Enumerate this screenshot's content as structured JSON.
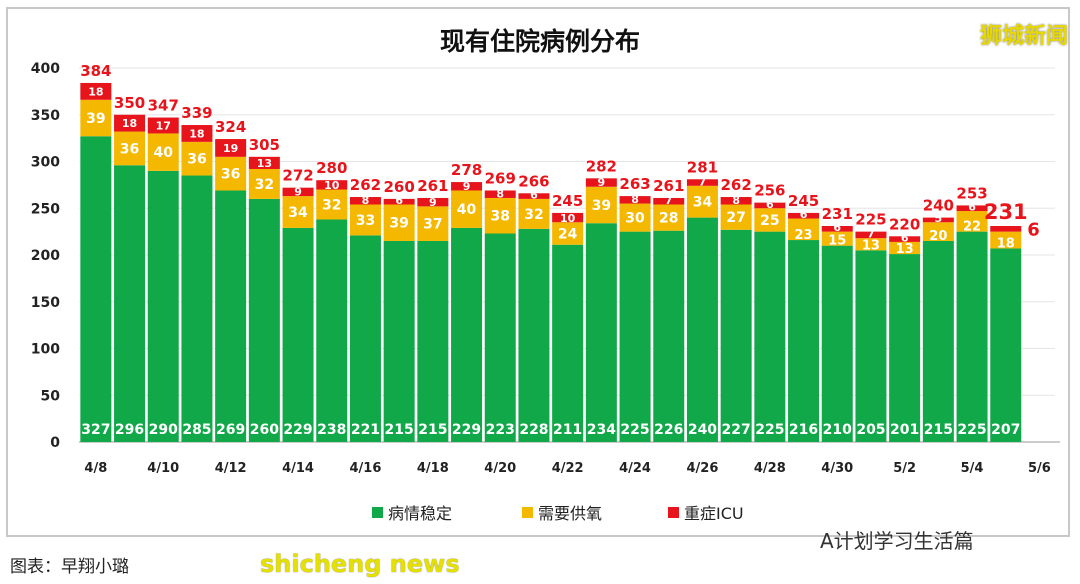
{
  "chart_data": {
    "type": "bar",
    "stacked": true,
    "title": "现有住院病例分布",
    "categories": [
      "4/8",
      "4/9",
      "4/10",
      "4/11",
      "4/12",
      "4/13",
      "4/14",
      "4/15",
      "4/16",
      "4/17",
      "4/18",
      "4/19",
      "4/20",
      "4/21",
      "4/22",
      "4/23",
      "4/24",
      "4/25",
      "4/26",
      "4/27",
      "4/28",
      "4/29",
      "4/30",
      "5/1",
      "5/2",
      "5/3",
      "5/4",
      "5/5"
    ],
    "x_tick_labels": [
      "4/8",
      "4/10",
      "4/12",
      "4/14",
      "4/16",
      "4/18",
      "4/20",
      "4/22",
      "4/24",
      "4/26",
      "4/28",
      "4/30",
      "5/2",
      "5/4",
      "5/6"
    ],
    "series": [
      {
        "name": "病情稳定",
        "color": "#11a84a",
        "values": [
          327,
          296,
          290,
          285,
          269,
          260,
          229,
          238,
          221,
          215,
          215,
          229,
          223,
          228,
          211,
          234,
          225,
          226,
          240,
          227,
          225,
          216,
          210,
          205,
          201,
          215,
          225,
          207
        ]
      },
      {
        "name": "需要供氧",
        "color": "#f5b800",
        "values": [
          39,
          36,
          40,
          36,
          36,
          32,
          34,
          32,
          33,
          39,
          37,
          40,
          38,
          32,
          24,
          39,
          30,
          28,
          34,
          27,
          25,
          23,
          15,
          13,
          13,
          20,
          22,
          18
        ]
      },
      {
        "name": "重症ICU",
        "color": "#e8141b",
        "values": [
          18,
          18,
          17,
          18,
          19,
          13,
          9,
          10,
          8,
          6,
          9,
          9,
          8,
          6,
          10,
          9,
          8,
          7,
          7,
          8,
          6,
          6,
          6,
          7,
          6,
          5,
          6,
          6
        ]
      }
    ],
    "totals": [
      384,
      350,
      347,
      339,
      324,
      305,
      272,
      280,
      262,
      260,
      261,
      278,
      269,
      266,
      245,
      282,
      263,
      261,
      281,
      262,
      256,
      245,
      231,
      225,
      220,
      240,
      253,
      231
    ],
    "ylim": [
      0,
      400
    ],
    "y_ticks": [
      0,
      50,
      100,
      150,
      200,
      250,
      300,
      350,
      400
    ],
    "grid": true,
    "legend": "bottom"
  },
  "watermarks": {
    "top_right": "狮城新闻",
    "bottom_right": "A计划学习生活篇",
    "bottom_left": "shicheng news"
  },
  "credit": "图表：早翔小璐"
}
